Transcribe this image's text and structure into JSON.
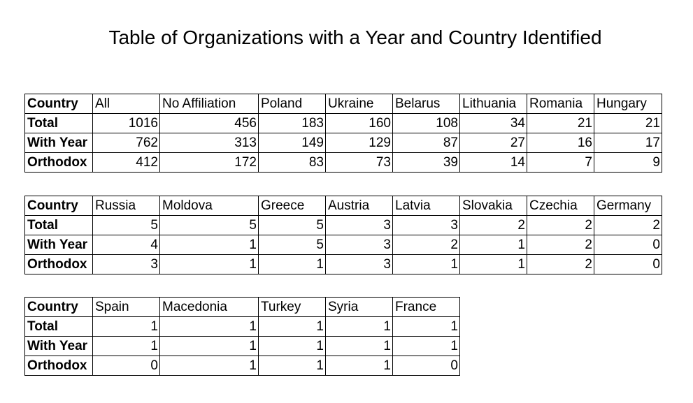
{
  "title": "Table of Organizations with a Year and Country Identified",
  "row_labels": [
    "Country",
    "Total",
    "With Year",
    "Orthodox"
  ],
  "tables": [
    {
      "countries": [
        "All",
        "No Affiliation",
        "Poland",
        "Ukraine",
        "Belarus",
        "Lithuania",
        "Romania",
        "Hungary"
      ],
      "total": [
        "1016",
        "456",
        "183",
        "160",
        "108",
        "34",
        "21",
        "21"
      ],
      "with_year": [
        "762",
        "313",
        "149",
        "129",
        "87",
        "27",
        "16",
        "17"
      ],
      "orthodox": [
        "412",
        "172",
        "83",
        "73",
        "39",
        "14",
        "7",
        "9"
      ]
    },
    {
      "countries": [
        "Russia",
        "Moldova",
        "Greece",
        "Austria",
        "Latvia",
        "Slovakia",
        "Czechia",
        "Germany"
      ],
      "total": [
        "5",
        "5",
        "5",
        "3",
        "3",
        "2",
        "2",
        "2"
      ],
      "with_year": [
        "4",
        "1",
        "5",
        "3",
        "2",
        "1",
        "2",
        "0"
      ],
      "orthodox": [
        "3",
        "1",
        "1",
        "3",
        "1",
        "1",
        "2",
        "0"
      ]
    },
    {
      "countries": [
        "Spain",
        "Macedonia",
        "Turkey",
        "Syria",
        "France"
      ],
      "total": [
        "1",
        "1",
        "1",
        "1",
        "1"
      ],
      "with_year": [
        "1",
        "1",
        "1",
        "1",
        "1"
      ],
      "orthodox": [
        "0",
        "1",
        "1",
        "1",
        "0"
      ]
    }
  ]
}
